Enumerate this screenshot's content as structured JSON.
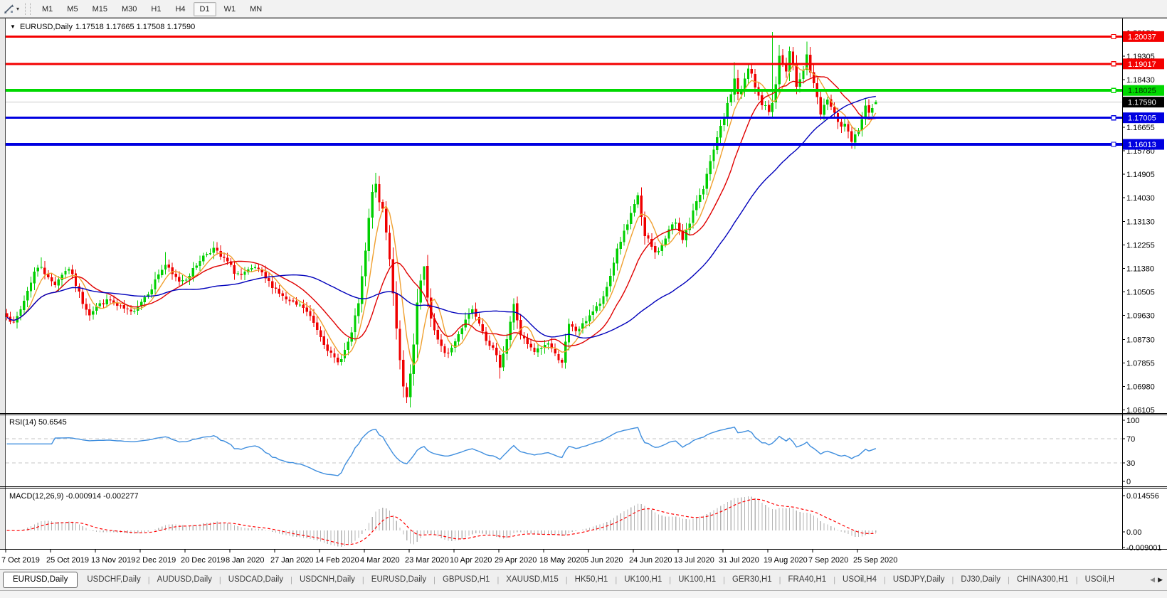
{
  "toolbar": {
    "icon_name": "chart-tools-icon",
    "caret": "▾",
    "timeframes": [
      "M1",
      "M5",
      "M15",
      "M30",
      "H1",
      "H4",
      "D1",
      "W1",
      "MN"
    ],
    "active_timeframe": "D1"
  },
  "chart": {
    "collapse_icon": "▼",
    "title_symbol": "EURUSD,Daily",
    "title_ohlc": "1.17518 1.17665 1.17508 1.17590"
  },
  "price_axis": {
    "ticks": [
      {
        "label": "1.20180",
        "price": 1.2018
      },
      {
        "label": "1.19305",
        "price": 1.19305
      },
      {
        "label": "1.18430",
        "price": 1.1843
      },
      {
        "label": "1.16655",
        "price": 1.16655
      },
      {
        "label": "1.15780",
        "price": 1.1578
      },
      {
        "label": "1.14905",
        "price": 1.14905
      },
      {
        "label": "1.14030",
        "price": 1.1403
      },
      {
        "label": "1.13130",
        "price": 1.1313
      },
      {
        "label": "1.12255",
        "price": 1.12255
      },
      {
        "label": "1.11380",
        "price": 1.1138
      },
      {
        "label": "1.10505",
        "price": 1.10505
      },
      {
        "label": "1.09630",
        "price": 1.0963
      },
      {
        "label": "1.08730",
        "price": 1.0873
      },
      {
        "label": "1.07855",
        "price": 1.07855
      },
      {
        "label": "1.06980",
        "price": 1.0698
      },
      {
        "label": "1.06105",
        "price": 1.06105
      }
    ],
    "line_labels": [
      {
        "text": "1.20037",
        "price": 1.20037,
        "bg": "#f40000",
        "fg": "#ffffff"
      },
      {
        "text": "1.19017",
        "price": 1.19017,
        "bg": "#f40000",
        "fg": "#ffffff"
      },
      {
        "text": "1.18025",
        "price": 1.18025,
        "bg": "#00d800",
        "fg": "#003000"
      },
      {
        "text": "1.17590",
        "price": 1.1759,
        "bg": "#000000",
        "fg": "#ffffff"
      },
      {
        "text": "1.17005",
        "price": 1.17005,
        "bg": "#0000e0",
        "fg": "#ffffff"
      },
      {
        "text": "1.16013",
        "price": 1.16013,
        "bg": "#0000e0",
        "fg": "#ffffff"
      }
    ]
  },
  "hlines": [
    {
      "price": 1.20037,
      "color": "#f40000",
      "width": 3
    },
    {
      "price": 1.19017,
      "color": "#f40000",
      "width": 3
    },
    {
      "price": 1.18025,
      "color": "#00d800",
      "width": 4
    },
    {
      "price": 1.17005,
      "color": "#0000e0",
      "width": 3
    },
    {
      "price": 1.16013,
      "color": "#0000e0",
      "width": 4
    }
  ],
  "current_price_line": {
    "price": 1.1759,
    "color": "#c9c9c9"
  },
  "rsi": {
    "label": "RSI(14) 50.6545",
    "current": 50.6545,
    "levels": [
      70,
      30
    ],
    "scale": [
      {
        "text": "100",
        "value": 100
      },
      {
        "text": "70",
        "value": 70
      },
      {
        "text": "30",
        "value": 30
      },
      {
        "text": "0",
        "value": 0
      }
    ],
    "line_color": "#3f8ede",
    "level_color": "#c6c6c6"
  },
  "macd": {
    "label": "MACD(12,26,9) -0.000914 -0.002277",
    "values": [
      "-0.000914",
      "-0.002277"
    ],
    "scale": [
      {
        "text": "0.014556",
        "pos": "top"
      },
      {
        "text": "0.00",
        "pos": "zero"
      },
      {
        "text": "-0.009001",
        "pos": "bottom"
      }
    ],
    "hist_color": "#b4b4b4",
    "signal_color": "#ff0000"
  },
  "date_axis": [
    "7 Oct 2019",
    "25 Oct 2019",
    "13 Nov 2019",
    "2 Dec 2019",
    "20 Dec 2019",
    "8 Jan 2020",
    "27 Jan 2020",
    "14 Feb 2020",
    "4 Mar 2020",
    "23 Mar 2020",
    "10 Apr 2020",
    "29 Apr 2020",
    "18 May 2020",
    "5 Jun 2020",
    "24 Jun 2020",
    "13 Jul 2020",
    "31 Jul 2020",
    "19 Aug 2020",
    "7 Sep 2020",
    "25 Sep 2020"
  ],
  "tabs": {
    "items": [
      "EURUSD,Daily",
      "USDCHF,Daily",
      "AUDUSD,Daily",
      "USDCAD,Daily",
      "USDCNH,Daily",
      "EURUSD,Daily",
      "GBPUSD,H1",
      "XAUUSD,M15",
      "HK50,H1",
      "UK100,H1",
      "UK100,H1",
      "GER30,H1",
      "FRA40,H1",
      "USOil,H4",
      "USDJPY,Daily",
      "DJ30,Daily",
      "CHINA300,H1",
      "USOil,H"
    ],
    "active_index": 0,
    "scroll_left_icon": "◀",
    "scroll_right_icon": "▶"
  },
  "colors": {
    "bull": "#00cf00",
    "bear": "#ef0000",
    "ma_fast": "#f0a030",
    "ma_medium": "#e00000",
    "ma_slow": "#0000bb",
    "panel_bg": "#ffffff",
    "frame": "#4a4a4a",
    "axis_text": "#000000",
    "gutter": "#e9e9e9"
  },
  "chart_data": {
    "type": "candlestick",
    "symbol": "EURUSD",
    "period": "Daily",
    "n_candles": 253,
    "price_range": {
      "top": 1.2018,
      "bottom": 1.06105
    },
    "ohlc_last": {
      "open": 1.17518,
      "high": 1.17665,
      "low": 1.17508,
      "close": 1.1759
    },
    "close_anchors": [
      [
        0,
        1.0965
      ],
      [
        2,
        1.093
      ],
      [
        4,
        1.0985
      ],
      [
        6,
        1.1055
      ],
      [
        8,
        1.1125
      ],
      [
        10,
        1.1148
      ],
      [
        12,
        1.11
      ],
      [
        14,
        1.1082
      ],
      [
        16,
        1.1118
      ],
      [
        18,
        1.114
      ],
      [
        20,
        1.1078
      ],
      [
        22,
        1.1012
      ],
      [
        24,
        1.097
      ],
      [
        26,
        1.0996
      ],
      [
        28,
        1.1012
      ],
      [
        30,
        1.1018
      ],
      [
        32,
        1.0996
      ],
      [
        34,
        1.0986
      ],
      [
        36,
        1.0972
      ],
      [
        38,
        1.1002
      ],
      [
        40,
        1.1032
      ],
      [
        42,
        1.1068
      ],
      [
        44,
        1.1118
      ],
      [
        46,
        1.1152
      ],
      [
        48,
        1.1114
      ],
      [
        50,
        1.1092
      ],
      [
        52,
        1.1102
      ],
      [
        54,
        1.1132
      ],
      [
        56,
        1.1172
      ],
      [
        58,
        1.1196
      ],
      [
        60,
        1.1212
      ],
      [
        62,
        1.1182
      ],
      [
        64,
        1.1162
      ],
      [
        66,
        1.1126
      ],
      [
        68,
        1.1112
      ],
      [
        70,
        1.1126
      ],
      [
        72,
        1.1142
      ],
      [
        74,
        1.1116
      ],
      [
        76,
        1.1086
      ],
      [
        78,
        1.1062
      ],
      [
        80,
        1.1032
      ],
      [
        82,
        1.1012
      ],
      [
        84,
        1.1002
      ],
      [
        86,
        1.0992
      ],
      [
        88,
        1.0956
      ],
      [
        90,
        1.0912
      ],
      [
        92,
        1.0862
      ],
      [
        94,
        1.0816
      ],
      [
        96,
        1.0786
      ],
      [
        98,
        1.0832
      ],
      [
        100,
        1.0896
      ],
      [
        102,
        1.1012
      ],
      [
        103,
        1.11
      ],
      [
        104,
        1.1202
      ],
      [
        105,
        1.1322
      ],
      [
        106,
        1.1422
      ],
      [
        107,
        1.1448
      ],
      [
        108,
        1.1392
      ],
      [
        109,
        1.1352
      ],
      [
        110,
        1.1272
      ],
      [
        111,
        1.1172
      ],
      [
        112,
        1.1052
      ],
      [
        113,
        1.0916
      ],
      [
        114,
        1.0802
      ],
      [
        115,
        1.0692
      ],
      [
        116,
        1.0652
      ],
      [
        117,
        1.0742
      ],
      [
        118,
        1.0852
      ],
      [
        119,
        1.1002
      ],
      [
        120,
        1.1092
      ],
      [
        121,
        1.1142
      ],
      [
        122,
        1.1022
      ],
      [
        123,
        1.0952
      ],
      [
        125,
        1.0872
      ],
      [
        127,
        1.0816
      ],
      [
        129,
        1.0842
      ],
      [
        131,
        1.0892
      ],
      [
        133,
        1.0952
      ],
      [
        135,
        1.0986
      ],
      [
        137,
        1.0942
      ],
      [
        139,
        1.0876
      ],
      [
        141,
        1.0836
      ],
      [
        143,
        1.0776
      ],
      [
        145,
        1.0876
      ],
      [
        147,
        1.1002
      ],
      [
        149,
        1.0892
      ],
      [
        151,
        1.0852
      ],
      [
        153,
        1.0826
      ],
      [
        155,
        1.0842
      ],
      [
        157,
        1.0862
      ],
      [
        159,
        1.0816
      ],
      [
        161,
        1.0792
      ],
      [
        163,
        1.0926
      ],
      [
        165,
        1.0906
      ],
      [
        167,
        1.0926
      ],
      [
        169,
        1.0966
      ],
      [
        171,
        1.0992
      ],
      [
        173,
        1.1026
      ],
      [
        175,
        1.1112
      ],
      [
        177,
        1.1212
      ],
      [
        179,
        1.1272
      ],
      [
        180,
        1.1302
      ],
      [
        182,
        1.1372
      ],
      [
        183,
        1.1412
      ],
      [
        184,
        1.1332
      ],
      [
        185,
        1.1256
      ],
      [
        186,
        1.1242
      ],
      [
        188,
        1.1196
      ],
      [
        190,
        1.1222
      ],
      [
        192,
        1.1282
      ],
      [
        194,
        1.1312
      ],
      [
        196,
        1.1252
      ],
      [
        198,
        1.1302
      ],
      [
        200,
        1.1392
      ],
      [
        202,
        1.1442
      ],
      [
        204,
        1.1532
      ],
      [
        206,
        1.1622
      ],
      [
        208,
        1.1702
      ],
      [
        210,
        1.1792
      ],
      [
        211,
        1.1846
      ],
      [
        212,
        1.1792
      ],
      [
        213,
        1.1802
      ],
      [
        214,
        1.1842
      ],
      [
        215,
        1.1882
      ],
      [
        216,
        1.1862
      ],
      [
        217,
        1.1812
      ],
      [
        218,
        1.1782
      ],
      [
        219,
        1.1752
      ],
      [
        220,
        1.1742
      ],
      [
        221,
        1.1722
      ],
      [
        222,
        1.1762
      ],
      [
        223,
        1.1822
      ],
      [
        224,
        1.1932
      ],
      [
        225,
        1.1902
      ],
      [
        226,
        1.1872
      ],
      [
        227,
        1.1942
      ],
      [
        228,
        1.1892
      ],
      [
        229,
        1.1822
      ],
      [
        230,
        1.1852
      ],
      [
        231,
        1.1882
      ],
      [
        232,
        1.1936
      ],
      [
        233,
        1.1872
      ],
      [
        234,
        1.1822
      ],
      [
        235,
        1.1772
      ],
      [
        236,
        1.1712
      ],
      [
        237,
        1.1742
      ],
      [
        238,
        1.1772
      ],
      [
        239,
        1.1742
      ],
      [
        240,
        1.1712
      ],
      [
        241,
        1.1682
      ],
      [
        242,
        1.1662
      ],
      [
        243,
        1.1682
      ],
      [
        244,
        1.1642
      ],
      [
        245,
        1.1602
      ],
      [
        246,
        1.1632
      ],
      [
        247,
        1.1662
      ],
      [
        248,
        1.1702
      ],
      [
        249,
        1.1742
      ],
      [
        250,
        1.1726
      ],
      [
        251,
        1.1744
      ],
      [
        252,
        1.1759
      ]
    ],
    "wick_overrides": [
      {
        "i": 10,
        "high": 1.1179
      },
      {
        "i": 46,
        "high": 1.1199
      },
      {
        "i": 60,
        "high": 1.1239
      },
      {
        "i": 96,
        "low": 1.0777
      },
      {
        "i": 107,
        "high": 1.1495
      },
      {
        "i": 116,
        "low": 1.0636
      },
      {
        "i": 121,
        "high": 1.1147
      },
      {
        "i": 143,
        "low": 1.0727
      },
      {
        "i": 161,
        "low": 1.0767
      },
      {
        "i": 183,
        "high": 1.1422
      },
      {
        "i": 211,
        "high": 1.1908
      },
      {
        "i": 222,
        "high": 1.202
      },
      {
        "i": 227,
        "high": 1.1966
      },
      {
        "i": 232,
        "high": 1.1985
      },
      {
        "i": 245,
        "low": 1.1585
      }
    ],
    "moving_averages": [
      {
        "name": "fast",
        "window": 6,
        "color_key": "ma_fast"
      },
      {
        "name": "medium",
        "window": 15,
        "color_key": "ma_medium"
      },
      {
        "name": "slow",
        "window": 45,
        "color_key": "ma_slow"
      }
    ],
    "indicators": [
      {
        "type": "RSI",
        "period": 14
      },
      {
        "type": "MACD",
        "fast": 12,
        "slow": 26,
        "signal": 9
      }
    ]
  }
}
